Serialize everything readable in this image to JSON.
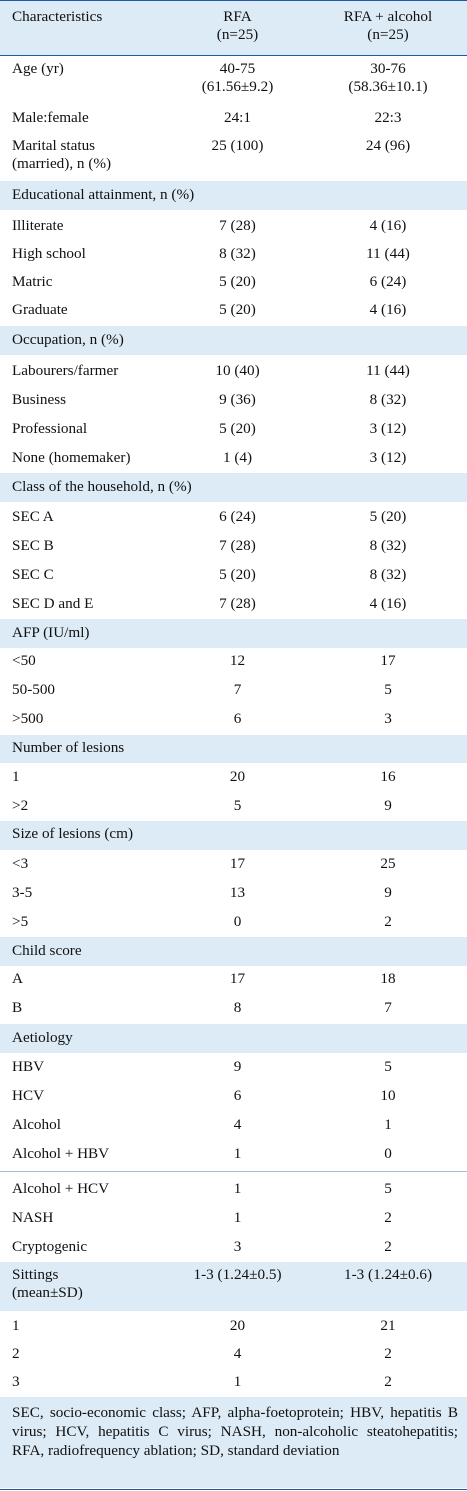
{
  "header": {
    "col1": "Characteristics",
    "col2": [
      "RFA",
      "(n=25)"
    ],
    "col3": [
      "RFA + alcohol",
      "(n=25)"
    ]
  },
  "rows": {
    "age": {
      "label": "Age (yr)",
      "rfa": [
        "40-75",
        "(61.56±9.2)"
      ],
      "rfa_alcohol": [
        "30-76",
        "(58.36±10.1)"
      ]
    },
    "sex": {
      "label": "Male:female",
      "rfa": "24:1",
      "rfa_alcohol": "22:3"
    },
    "marital": {
      "label": [
        "Marital status",
        "(married), n (%)"
      ],
      "rfa": "25 (100)",
      "rfa_alcohol": "24 (96)"
    },
    "edu_head": "Educational attainment, n (%)",
    "edu": [
      {
        "label": "Illiterate",
        "rfa": "7 (28)",
        "rfa_alcohol": "4 (16)"
      },
      {
        "label": "High school",
        "rfa": "8 (32)",
        "rfa_alcohol": "11 (44)"
      },
      {
        "label": "Matric",
        "rfa": "5 (20)",
        "rfa_alcohol": "6 (24)"
      },
      {
        "label": "Graduate",
        "rfa": "5 (20)",
        "rfa_alcohol": "4 (16)"
      }
    ],
    "occ_head": "Occupation, n (%)",
    "occ": [
      {
        "label": "Labourers/farmer",
        "rfa": "10 (40)",
        "rfa_alcohol": "11 (44)"
      },
      {
        "label": "Business",
        "rfa": "9 (36)",
        "rfa_alcohol": "8 (32)"
      },
      {
        "label": "Professional",
        "rfa": "5 (20)",
        "rfa_alcohol": "3 (12)"
      },
      {
        "label": "None (homemaker)",
        "rfa": "1 (4)",
        "rfa_alcohol": "3 (12)"
      }
    ],
    "class_head": "Class of the household, n (%)",
    "class": [
      {
        "label": "SEC A",
        "rfa": "6 (24)",
        "rfa_alcohol": "5 (20)"
      },
      {
        "label": "SEC B",
        "rfa": "7 (28)",
        "rfa_alcohol": "8 (32)"
      },
      {
        "label": "SEC C",
        "rfa": "5 (20)",
        "rfa_alcohol": "8 (32)"
      },
      {
        "label": "SEC D and E",
        "rfa": "7 (28)",
        "rfa_alcohol": "4 (16)"
      }
    ],
    "afp_head": "AFP (IU/ml)",
    "afp": [
      {
        "label": "<50",
        "rfa": "12",
        "rfa_alcohol": "17"
      },
      {
        "label": "50-500",
        "rfa": "7",
        "rfa_alcohol": "5"
      },
      {
        "label": ">500",
        "rfa": "6",
        "rfa_alcohol": "3"
      }
    ],
    "num_head": "Number of lesions",
    "num": [
      {
        "label": "1",
        "rfa": "20",
        "rfa_alcohol": "16"
      },
      {
        "label": ">2",
        "rfa": "5",
        "rfa_alcohol": "9"
      }
    ],
    "size_head": "Size of lesions (cm)",
    "size": [
      {
        "label": "<3",
        "rfa": "17",
        "rfa_alcohol": "25"
      },
      {
        "label": "3-5",
        "rfa": "13",
        "rfa_alcohol": "9"
      },
      {
        "label": ">5",
        "rfa": "0",
        "rfa_alcohol": "2"
      }
    ],
    "child_head": "Child score",
    "child": [
      {
        "label": "A",
        "rfa": "17",
        "rfa_alcohol": "18"
      },
      {
        "label": "B",
        "rfa": "8",
        "rfa_alcohol": "7"
      }
    ],
    "aet_head": "Aetiology",
    "aet": [
      {
        "label": "HBV",
        "rfa": "9",
        "rfa_alcohol": "5"
      },
      {
        "label": "HCV",
        "rfa": "6",
        "rfa_alcohol": "10"
      },
      {
        "label": "Alcohol",
        "rfa": "4",
        "rfa_alcohol": "1"
      },
      {
        "label": "Alcohol + HBV",
        "rfa": "1",
        "rfa_alcohol": "0"
      },
      {
        "label": "Alcohol + HCV",
        "rfa": "1",
        "rfa_alcohol": "5"
      },
      {
        "label": "NASH",
        "rfa": "1",
        "rfa_alcohol": "2"
      },
      {
        "label": "Cryptogenic",
        "rfa": "3",
        "rfa_alcohol": "2"
      }
    ],
    "sit": {
      "label": [
        "Sittings",
        "(mean±SD)"
      ],
      "rfa": "1-3 (1.24±0.5)",
      "rfa_alcohol": "1-3 (1.24±0.6)"
    },
    "sit_rows": [
      {
        "label": "1",
        "rfa": "20",
        "rfa_alcohol": "21"
      },
      {
        "label": "2",
        "rfa": "4",
        "rfa_alcohol": "2"
      },
      {
        "label": "3",
        "rfa": "1",
        "rfa_alcohol": "2"
      }
    ]
  },
  "footnote": "SEC, socio-economic class; AFP, alpha-foetoprotein; HBV, hepatitis B virus; HCV, hepatitis C virus; NASH, non-alcoholic steatohepatitis; RFA, radiofrequency ablation; SD, standard deviation",
  "colors": {
    "shade": "#dcebf6",
    "rule": "#1e5aa8"
  }
}
